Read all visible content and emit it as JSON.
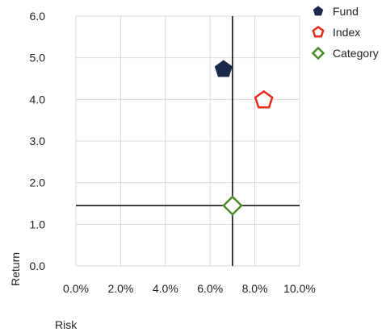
{
  "chart_data": {
    "type": "scatter",
    "xlabel": "Risk",
    "ylabel": "Return",
    "xlim": [
      0,
      10
    ],
    "ylim": [
      0,
      6
    ],
    "x_ticks": [
      "0.0%",
      "2.0%",
      "4.0%",
      "6.0%",
      "8.0%",
      "10.0%"
    ],
    "y_ticks": [
      "0.0",
      "1.0",
      "2.0",
      "3.0",
      "4.0",
      "5.0",
      "6.0"
    ],
    "grid": true,
    "legend_position": "top-right",
    "reference_lines": {
      "x": 7.0,
      "y": 1.45
    },
    "series": [
      {
        "name": "Fund",
        "x": 6.6,
        "y": 4.72,
        "marker": "pentagon-filled",
        "color": "#1b2a4a"
      },
      {
        "name": "Index",
        "x": 8.4,
        "y": 3.98,
        "marker": "pentagon-open",
        "color": "#e8291c"
      },
      {
        "name": "Category",
        "x": 7.0,
        "y": 1.45,
        "marker": "diamond-open",
        "color": "#4a8a2a"
      }
    ]
  }
}
